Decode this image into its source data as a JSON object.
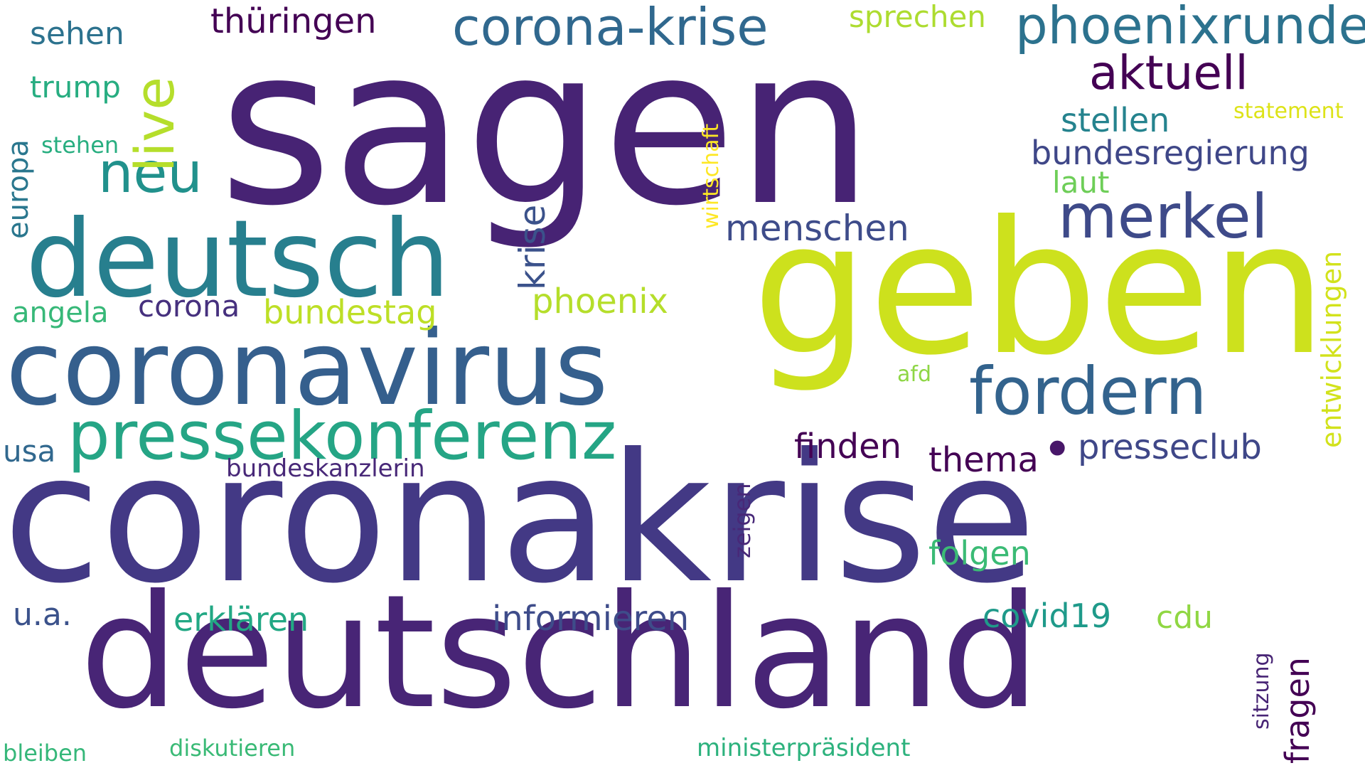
{
  "cloud": {
    "background": "#ffffff",
    "words": {
      "sagen": "sagen",
      "coronakrise": "coronakrise",
      "geben": "geben",
      "deutschland": "deutschland",
      "coronavirus": "coronavirus",
      "deutsch": "deutsch",
      "pressekonferenz": "pressekonferenz",
      "corona_krise": "corona-krise",
      "phoenixrunde": "phoenixrunde",
      "fordern": "fordern",
      "merkel": "merkel",
      "neu": "neu",
      "aktuell": "aktuell",
      "live": "live",
      "thueringen": "thüringen",
      "sprechen": "sprechen",
      "bundesregierung": "bundesregierung",
      "stellen": "stellen",
      "statement": "statement",
      "laut": "laut",
      "wirtschaft": "wirtschaft",
      "menschen": "menschen",
      "krise": "krise",
      "phoenix": "phoenix",
      "sehen": "sehen",
      "trump": "trump",
      "stehen": "stehen",
      "europa": "europa",
      "angela": "angela",
      "corona": "corona",
      "bundestag": "bundestag",
      "entwicklungen": "entwicklungen",
      "afd": "afd",
      "finden": "finden",
      "thema": "thema",
      "dot": "•",
      "presseclub": "presseclub",
      "usa": "usa",
      "bundeskanzlerin": "bundeskanzlerin",
      "zeigen": "zeigen",
      "folgen": "folgen",
      "ua": "u.a.",
      "erklaeren": "erklären",
      "informieren": "informieren",
      "covid19": "covid19",
      "cdu": "cdu",
      "sitzung": "sitzung",
      "fragen": "fragen",
      "bleiben": "bleiben",
      "diskutieren": "diskutieren",
      "ministerpraesident": "ministerpräsident"
    }
  }
}
